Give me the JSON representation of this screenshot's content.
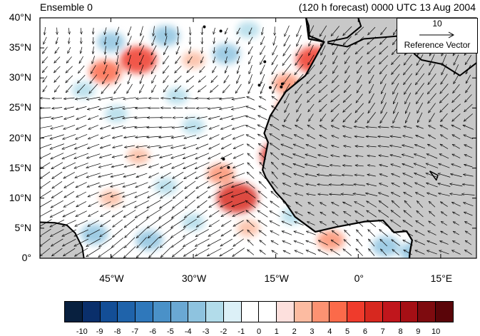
{
  "header": {
    "left_title": "Ensemble 0",
    "right_title": "(120 h forecast) 0000 UTC 13 Aug 2004"
  },
  "map": {
    "lat_labels": [
      "40°N",
      "35°N",
      "30°N",
      "25°N",
      "20°N",
      "15°N",
      "10°N",
      "5°N",
      "0°"
    ],
    "lon_labels": [
      "45°W",
      "30°W",
      "15°W",
      "0°",
      "15°E"
    ],
    "land_color": "#c8c8c8",
    "coast_color": "#000000",
    "anomalies": [
      {
        "lon": -40,
        "lat": 33,
        "v": 5
      },
      {
        "lon": -46,
        "lat": 31,
        "v": 4
      },
      {
        "lon": -30,
        "lat": 33,
        "v": 2
      },
      {
        "lon": -35,
        "lat": 37,
        "v": -3
      },
      {
        "lon": -24,
        "lat": 34,
        "v": -3
      },
      {
        "lon": -45,
        "lat": 36,
        "v": -3
      },
      {
        "lon": -20,
        "lat": 38,
        "v": -2
      },
      {
        "lon": -44,
        "lat": 24,
        "v": -2
      },
      {
        "lon": -33,
        "lat": 27,
        "v": -2
      },
      {
        "lon": -50,
        "lat": 28,
        "v": -2
      },
      {
        "lon": -30,
        "lat": 22,
        "v": -2
      },
      {
        "lon": -22,
        "lat": 10,
        "v": 6
      },
      {
        "lon": -25,
        "lat": 14,
        "v": 3
      },
      {
        "lon": -14,
        "lat": 17,
        "v": 6
      },
      {
        "lon": -45,
        "lat": 10,
        "v": 2
      },
      {
        "lon": -40,
        "lat": 17,
        "v": 2
      },
      {
        "lon": -48,
        "lat": 4,
        "v": -3
      },
      {
        "lon": -38,
        "lat": 3,
        "v": -3
      },
      {
        "lon": -12,
        "lat": 25,
        "v": 4
      },
      {
        "lon": -13,
        "lat": 29,
        "v": 3
      },
      {
        "lon": -8,
        "lat": 33,
        "v": 5
      },
      {
        "lon": -2,
        "lat": 35,
        "v": 6
      },
      {
        "lon": 2,
        "lat": 33,
        "v": 6
      },
      {
        "lon": 5,
        "lat": 31,
        "v": -6
      },
      {
        "lon": 9,
        "lat": 28,
        "v": -5
      },
      {
        "lon": 11,
        "lat": 25,
        "v": 4
      },
      {
        "lon": -7,
        "lat": 27,
        "v": -5
      },
      {
        "lon": -3,
        "lat": 29,
        "v": 5
      },
      {
        "lon": 0,
        "lat": 27,
        "v": -3
      },
      {
        "lon": 4,
        "lat": 24,
        "v": 6
      },
      {
        "lon": 8,
        "lat": 21,
        "v": 7
      },
      {
        "lon": 12,
        "lat": 20,
        "v": 6
      },
      {
        "lon": 16,
        "lat": 20,
        "v": 4
      },
      {
        "lon": -1,
        "lat": 19,
        "v": 7
      },
      {
        "lon": 3,
        "lat": 20,
        "v": -3
      },
      {
        "lon": -6,
        "lat": 19,
        "v": 3
      },
      {
        "lon": -10,
        "lat": 14,
        "v": 4
      },
      {
        "lon": -6,
        "lat": 13,
        "v": 3
      },
      {
        "lon": 0,
        "lat": 13,
        "v": 7
      },
      {
        "lon": 5,
        "lat": 13,
        "v": 4
      },
      {
        "lon": 10,
        "lat": 15,
        "v": -3
      },
      {
        "lon": 14,
        "lat": 16,
        "v": -3
      },
      {
        "lon": 8,
        "lat": 9,
        "v": 3
      },
      {
        "lon": -4,
        "lat": 16,
        "v": -3
      },
      {
        "lon": -12,
        "lat": 7,
        "v": -2
      },
      {
        "lon": -20,
        "lat": 5,
        "v": 2
      },
      {
        "lon": -5,
        "lat": 3,
        "v": 3
      },
      {
        "lon": 5,
        "lat": 2,
        "v": -3
      },
      {
        "lon": 14,
        "lat": 6,
        "v": -4
      },
      {
        "lon": 10,
        "lat": 1,
        "v": -3
      },
      {
        "lon": -30,
        "lat": 6,
        "v": -2
      },
      {
        "lon": -35,
        "lat": 12,
        "v": -2
      }
    ]
  },
  "reference": {
    "magnitude": "10",
    "label": "Reference Vector"
  },
  "colorbar": {
    "ticks": [
      "-10",
      "-9",
      "-8",
      "-7",
      "-6",
      "-5",
      "-4",
      "-3",
      "-2",
      "-1",
      "0",
      "1",
      "2",
      "3",
      "4",
      "5",
      "6",
      "7",
      "8",
      "9",
      "10"
    ],
    "colors": [
      "#08203f",
      "#0a2f6b",
      "#134e96",
      "#1f63aa",
      "#2f78bb",
      "#4a91c8",
      "#6aa8d3",
      "#8ec3df",
      "#b2dcea",
      "#dcf0f7",
      "#ffffff",
      "#ffffff",
      "#fde0dd",
      "#fcbba1",
      "#fc9272",
      "#fb6a4a",
      "#ef3b2c",
      "#d7281f",
      "#c0161c",
      "#a50f15",
      "#7e0b0f",
      "#5a0509"
    ]
  }
}
